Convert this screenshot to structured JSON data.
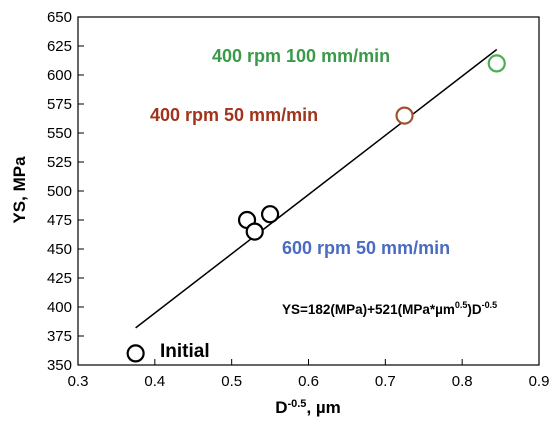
{
  "chart_data": {
    "type": "scatter",
    "title": "",
    "xlabel": "D",
    "xlabel_sup": "-0.5",
    "xlabel_unit": ", µm",
    "ylabel": "YS, MPa",
    "xlim": [
      0.3,
      0.9
    ],
    "ylim": [
      350,
      650
    ],
    "xticks": [
      0.3,
      0.4,
      0.5,
      0.6,
      0.7,
      0.8,
      0.9
    ],
    "yticks": [
      350,
      375,
      400,
      425,
      450,
      475,
      500,
      525,
      550,
      575,
      600,
      625,
      650
    ],
    "grid": false,
    "points": [
      {
        "x": 0.375,
        "y": 360,
        "color": "#000000"
      },
      {
        "x": 0.52,
        "y": 475,
        "color": "#000000"
      },
      {
        "x": 0.53,
        "y": 465,
        "color": "#000000"
      },
      {
        "x": 0.55,
        "y": 480,
        "color": "#000000"
      },
      {
        "x": 0.725,
        "y": 565,
        "color": "#a0522d"
      },
      {
        "x": 0.845,
        "y": 610,
        "color": "#4caf50"
      }
    ],
    "fit_line": {
      "x": [
        0.375,
        0.845
      ],
      "y": [
        382,
        622
      ]
    },
    "annotations": [
      {
        "text": "400 rpm 100 mm/min",
        "color": "#3a9a4a"
      },
      {
        "text": "400 rpm 50 mm/min",
        "color": "#a0341c"
      },
      {
        "text": "600 rpm 50 mm/min",
        "color": "#4a6cc0"
      },
      {
        "text": "Initial",
        "color": "#000000"
      }
    ],
    "equation": {
      "parts": [
        "YS=182(MPa)+521(MPa*µm",
        "0.5",
        ")D",
        "-0.5"
      ]
    }
  }
}
